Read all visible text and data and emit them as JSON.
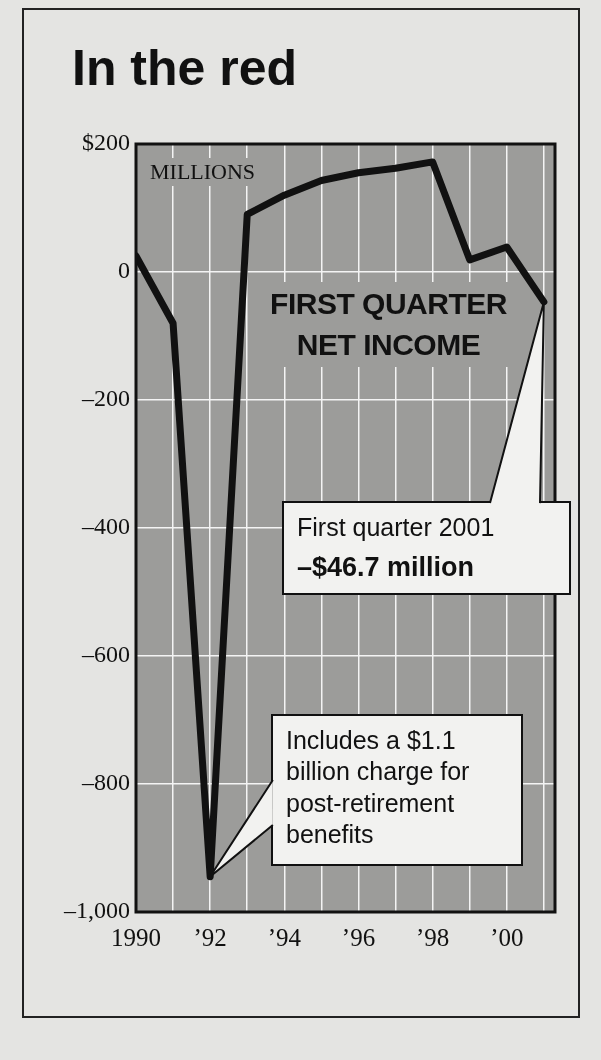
{
  "chart_data": {
    "type": "line",
    "title": "In the red",
    "subtitle": "FIRST QUARTER NET INCOME",
    "ylabel": "MILLIONS",
    "x": [
      1990,
      1991,
      1992,
      1993,
      1994,
      1995,
      1996,
      1997,
      1998,
      1999,
      2000,
      2001
    ],
    "series": [
      {
        "color": "#111111",
        "values": [
          25,
          -80,
          -945,
          90,
          120,
          143,
          155,
          162,
          172,
          19,
          39,
          -46.7
        ]
      }
    ],
    "xlim": [
      1990,
      2001.3
    ],
    "xticks": [
      {
        "value": 1990,
        "label": "1990"
      },
      {
        "value": 1991,
        "label": null
      },
      {
        "value": 1992,
        "label": "’92"
      },
      {
        "value": 1993,
        "label": null
      },
      {
        "value": 1994,
        "label": "’94"
      },
      {
        "value": 1995,
        "label": null
      },
      {
        "value": 1996,
        "label": "’96"
      },
      {
        "value": 1997,
        "label": null
      },
      {
        "value": 1998,
        "label": "’98"
      },
      {
        "value": 1999,
        "label": null
      },
      {
        "value": 2000,
        "label": "’00"
      },
      {
        "value": 2001,
        "label": null
      }
    ],
    "ylim": [
      -1000,
      200
    ],
    "yticks": [
      {
        "value": -1000,
        "label": "–1,000"
      },
      {
        "value": -800,
        "label": "–800"
      },
      {
        "value": -600,
        "label": "–600"
      },
      {
        "value": -400,
        "label": "–400"
      },
      {
        "value": -200,
        "label": "–200"
      },
      0,
      {
        "value": 200,
        "label": "$200"
      }
    ],
    "grid": true,
    "marker": "none",
    "line_style": "solid",
    "legend": false,
    "annotations": [
      {
        "text": "First quarter 2001\n–$46.7 million",
        "x": 2001,
        "y": -46.7
      },
      "Includes a $1.1 billion charge for post-retirement benefits"
    ]
  }
}
